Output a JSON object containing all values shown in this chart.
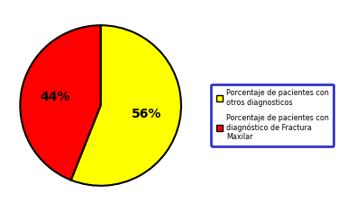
{
  "slices": [
    56,
    44
  ],
  "colors": [
    "#ffff00",
    "#ff0000"
  ],
  "labels": [
    "56%",
    "44%"
  ],
  "legend_labels": [
    "Porcentaje de pacientes con\notros diagnosticos",
    "Porcentaje de pacientes con\ndiagnóstico de Fractura\nMaxilar"
  ],
  "startangle": 90,
  "label_fontsize": 10,
  "label_color": "#000000",
  "background_color": "#ffffff",
  "pie_edge_color": "#000000",
  "legend_edge_color": "#3333cc",
  "legend_fontsize": 5.8
}
